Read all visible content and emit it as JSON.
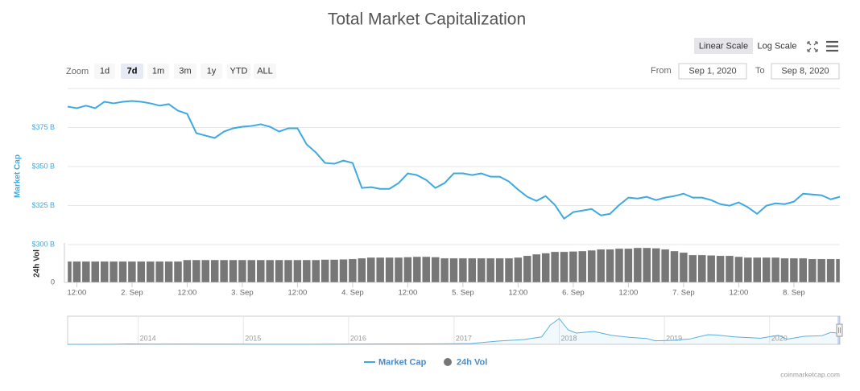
{
  "ui": {
    "title": "Total Market Capitalization",
    "scale_buttons": [
      "Linear Scale",
      "Log Scale"
    ],
    "scale_selected": "Linear Scale",
    "zoom_label": "Zoom",
    "zoom_buttons": [
      "1d",
      "7d",
      "1m",
      "3m",
      "1y",
      "YTD",
      "ALL"
    ],
    "zoom_selected": "7d",
    "from_label": "From",
    "from_value": "Sep 1, 2020",
    "to_label": "To",
    "to_value": "Sep 8, 2020",
    "credits": "coinmarketcap.com"
  },
  "chart_data": [
    {
      "type": "line",
      "y_label": "Market Cap",
      "xlim": [
        "2020-09-01T10:00",
        "2020-09-08T10:00"
      ],
      "ylim": [
        300,
        400
      ],
      "yticks": [
        {
          "value": 300,
          "label": "$300 B"
        },
        {
          "value": 325,
          "label": "$325 B"
        },
        {
          "value": 350,
          "label": "$350 B"
        },
        {
          "value": 375,
          "label": "$375 B"
        }
      ],
      "grid": true,
      "x": [
        "2020-09-01T10:00",
        "2020-09-01T12:00",
        "2020-09-01T14:00",
        "2020-09-01T16:00",
        "2020-09-01T18:00",
        "2020-09-01T20:00",
        "2020-09-01T22:00",
        "2020-09-02T00:00",
        "2020-09-02T02:00",
        "2020-09-02T04:00",
        "2020-09-02T06:00",
        "2020-09-02T08:00",
        "2020-09-02T10:00",
        "2020-09-02T12:00",
        "2020-09-02T14:00",
        "2020-09-02T16:00",
        "2020-09-02T18:00",
        "2020-09-02T20:00",
        "2020-09-02T22:00",
        "2020-09-03T00:00",
        "2020-09-03T02:00",
        "2020-09-03T04:00",
        "2020-09-03T06:00",
        "2020-09-03T08:00",
        "2020-09-03T10:00",
        "2020-09-03T12:00",
        "2020-09-03T14:00",
        "2020-09-03T16:00",
        "2020-09-03T18:00",
        "2020-09-03T20:00",
        "2020-09-03T22:00",
        "2020-09-04T00:00",
        "2020-09-04T02:00",
        "2020-09-04T04:00",
        "2020-09-04T06:00",
        "2020-09-04T08:00",
        "2020-09-04T10:00",
        "2020-09-04T12:00",
        "2020-09-04T14:00",
        "2020-09-04T16:00",
        "2020-09-04T18:00",
        "2020-09-04T20:00",
        "2020-09-04T22:00",
        "2020-09-05T00:00",
        "2020-09-05T02:00",
        "2020-09-05T04:00",
        "2020-09-05T06:00",
        "2020-09-05T08:00",
        "2020-09-05T10:00",
        "2020-09-05T12:00",
        "2020-09-05T14:00",
        "2020-09-05T16:00",
        "2020-09-05T18:00",
        "2020-09-05T20:00",
        "2020-09-05T22:00",
        "2020-09-06T00:00",
        "2020-09-06T02:00",
        "2020-09-06T04:00",
        "2020-09-06T06:00",
        "2020-09-06T08:00",
        "2020-09-06T10:00",
        "2020-09-06T12:00",
        "2020-09-06T14:00",
        "2020-09-06T16:00",
        "2020-09-06T18:00",
        "2020-09-06T20:00",
        "2020-09-06T22:00",
        "2020-09-07T00:00",
        "2020-09-07T02:00",
        "2020-09-07T04:00",
        "2020-09-07T06:00",
        "2020-09-07T08:00",
        "2020-09-07T10:00",
        "2020-09-07T12:00",
        "2020-09-07T14:00",
        "2020-09-07T16:00",
        "2020-09-07T18:00",
        "2020-09-07T20:00",
        "2020-09-07T22:00",
        "2020-09-08T00:00",
        "2020-09-08T02:00",
        "2020-09-08T04:00",
        "2020-09-08T06:00",
        "2020-09-08T08:00",
        "2020-09-08T10:00"
      ],
      "series": [
        {
          "name": "Market Cap",
          "color": "#3ea9e0",
          "values": [
            388.4,
            387.4,
            389.0,
            387.4,
            391.5,
            390.5,
            391.5,
            392.0,
            391.5,
            390.5,
            389.0,
            390.0,
            385.8,
            383.8,
            371.4,
            369.8,
            368.3,
            372.4,
            374.5,
            375.5,
            376.0,
            377.1,
            375.5,
            372.4,
            374.5,
            374.5,
            364.2,
            359.0,
            352.3,
            351.8,
            353.8,
            352.3,
            336.3,
            336.8,
            335.7,
            335.7,
            339.4,
            345.6,
            344.5,
            341.4,
            336.3,
            339.4,
            345.6,
            345.6,
            344.5,
            345.6,
            343.5,
            343.5,
            340.4,
            335.2,
            330.6,
            328.0,
            331.1,
            325.4,
            316.6,
            320.8,
            321.8,
            322.8,
            318.7,
            319.7,
            325.4,
            330.1,
            329.5,
            330.6,
            328.5,
            330.1,
            331.1,
            332.6,
            330.1,
            330.1,
            328.5,
            325.9,
            324.9,
            327.0,
            323.9,
            319.7,
            324.9,
            326.4,
            325.9,
            327.5,
            332.6,
            332.1,
            331.6,
            329.0,
            330.6
          ]
        }
      ]
    },
    {
      "type": "bar",
      "y_label": "24h Vol",
      "xlim": [
        "2020-09-01T10:00",
        "2020-09-08T10:00"
      ],
      "xticks": [
        {
          "value": "2020-09-01T12:00",
          "label": "12:00"
        },
        {
          "value": "2020-09-02T00:00",
          "label": "2. Sep"
        },
        {
          "value": "2020-09-02T12:00",
          "label": "12:00"
        },
        {
          "value": "2020-09-03T00:00",
          "label": "3. Sep"
        },
        {
          "value": "2020-09-03T12:00",
          "label": "12:00"
        },
        {
          "value": "2020-09-04T00:00",
          "label": "4. Sep"
        },
        {
          "value": "2020-09-04T12:00",
          "label": "12:00"
        },
        {
          "value": "2020-09-05T00:00",
          "label": "5. Sep"
        },
        {
          "value": "2020-09-05T12:00",
          "label": "12:00"
        },
        {
          "value": "2020-09-06T00:00",
          "label": "6. Sep"
        },
        {
          "value": "2020-09-06T12:00",
          "label": "12:00"
        },
        {
          "value": "2020-09-07T00:00",
          "label": "7. Sep"
        },
        {
          "value": "2020-09-07T12:00",
          "label": "12:00"
        },
        {
          "value": "2020-09-08T00:00",
          "label": "8. Sep"
        }
      ],
      "ylim": [
        0,
        200
      ],
      "yticks": [
        0
      ],
      "x": [
        "2020-09-01T10:00",
        "2020-09-01T12:00",
        "2020-09-01T14:00",
        "2020-09-01T16:00",
        "2020-09-01T18:00",
        "2020-09-01T20:00",
        "2020-09-01T22:00",
        "2020-09-02T00:00",
        "2020-09-02T02:00",
        "2020-09-02T04:00",
        "2020-09-02T06:00",
        "2020-09-02T08:00",
        "2020-09-02T10:00",
        "2020-09-02T12:00",
        "2020-09-02T14:00",
        "2020-09-02T16:00",
        "2020-09-02T18:00",
        "2020-09-02T20:00",
        "2020-09-02T22:00",
        "2020-09-03T00:00",
        "2020-09-03T02:00",
        "2020-09-03T04:00",
        "2020-09-03T06:00",
        "2020-09-03T08:00",
        "2020-09-03T10:00",
        "2020-09-03T12:00",
        "2020-09-03T14:00",
        "2020-09-03T16:00",
        "2020-09-03T18:00",
        "2020-09-03T20:00",
        "2020-09-03T22:00",
        "2020-09-04T00:00",
        "2020-09-04T02:00",
        "2020-09-04T04:00",
        "2020-09-04T06:00",
        "2020-09-04T08:00",
        "2020-09-04T10:00",
        "2020-09-04T12:00",
        "2020-09-04T14:00",
        "2020-09-04T16:00",
        "2020-09-04T18:00",
        "2020-09-04T20:00",
        "2020-09-04T22:00",
        "2020-09-05T00:00",
        "2020-09-05T02:00",
        "2020-09-05T04:00",
        "2020-09-05T06:00",
        "2020-09-05T08:00",
        "2020-09-05T10:00",
        "2020-09-05T12:00",
        "2020-09-05T14:00",
        "2020-09-05T16:00",
        "2020-09-05T18:00",
        "2020-09-05T20:00",
        "2020-09-05T22:00",
        "2020-09-06T00:00",
        "2020-09-06T02:00",
        "2020-09-06T04:00",
        "2020-09-06T06:00",
        "2020-09-06T08:00",
        "2020-09-06T10:00",
        "2020-09-06T12:00",
        "2020-09-06T14:00",
        "2020-09-06T16:00",
        "2020-09-06T18:00",
        "2020-09-06T20:00",
        "2020-09-06T22:00",
        "2020-09-07T00:00",
        "2020-09-07T02:00",
        "2020-09-07T04:00",
        "2020-09-07T06:00",
        "2020-09-07T08:00",
        "2020-09-07T10:00",
        "2020-09-07T12:00",
        "2020-09-07T14:00",
        "2020-09-07T16:00",
        "2020-09-07T18:00",
        "2020-09-07T20:00",
        "2020-09-07T22:00",
        "2020-09-08T00:00",
        "2020-09-08T02:00",
        "2020-09-08T04:00",
        "2020-09-08T06:00",
        "2020-09-08T08:00",
        "2020-09-08T10:00"
      ],
      "series": [
        {
          "name": "24h Vol",
          "color": "#777777",
          "values": [
            111,
            111,
            111,
            111,
            111,
            111,
            111,
            111,
            111,
            111,
            111,
            111,
            111,
            119,
            119,
            119,
            119,
            119,
            119,
            119,
            119,
            119,
            119,
            119,
            119,
            119,
            119,
            119,
            121,
            121,
            122,
            124,
            128,
            132,
            132,
            132,
            132,
            134,
            136,
            136,
            134,
            128,
            128,
            128,
            128,
            128,
            128,
            128,
            128,
            132,
            141,
            149,
            155,
            162,
            162,
            164,
            166,
            170,
            175,
            175,
            179,
            179,
            183,
            183,
            181,
            175,
            166,
            158,
            145,
            145,
            143,
            141,
            141,
            136,
            132,
            132,
            132,
            132,
            128,
            128,
            128,
            124,
            124,
            124,
            124
          ]
        }
      ]
    },
    {
      "type": "line",
      "xlim": [
        "2013-05",
        "2020-09"
      ],
      "xticks": [
        2014,
        2015,
        2016,
        2017,
        2018,
        2019,
        2020
      ],
      "ylim": [
        0,
        850
      ],
      "x": [
        "2013-05",
        "2013-07",
        "2013-10",
        "2013-12",
        "2014-03",
        "2014-06",
        "2014-09",
        "2014-12",
        "2015-03",
        "2015-06",
        "2015-09",
        "2015-12",
        "2016-03",
        "2016-06",
        "2016-09",
        "2016-12",
        "2017-03",
        "2017-06",
        "2017-09",
        "2017-11",
        "2017-12",
        "2018-01",
        "2018-02",
        "2018-03",
        "2018-05",
        "2018-07",
        "2018-09",
        "2018-11",
        "2018-12",
        "2019-02",
        "2019-04",
        "2019-06",
        "2019-07",
        "2019-09",
        "2019-12",
        "2020-02",
        "2020-03",
        "2020-05",
        "2020-07",
        "2020-08",
        "2020-09"
      ],
      "series": [
        {
          "name": "Market Cap",
          "color": "#5aaee0",
          "values": [
            1.5,
            1,
            2,
            12,
            7,
            8,
            6,
            5,
            4,
            4,
            4,
            7,
            8,
            11,
            12,
            17,
            25,
            100,
            150,
            230,
            600,
            800,
            450,
            350,
            400,
            280,
            220,
            180,
            110,
            125,
            170,
            300,
            290,
            230,
            190,
            280,
            160,
            250,
            270,
            370,
            340
          ]
        }
      ]
    }
  ]
}
